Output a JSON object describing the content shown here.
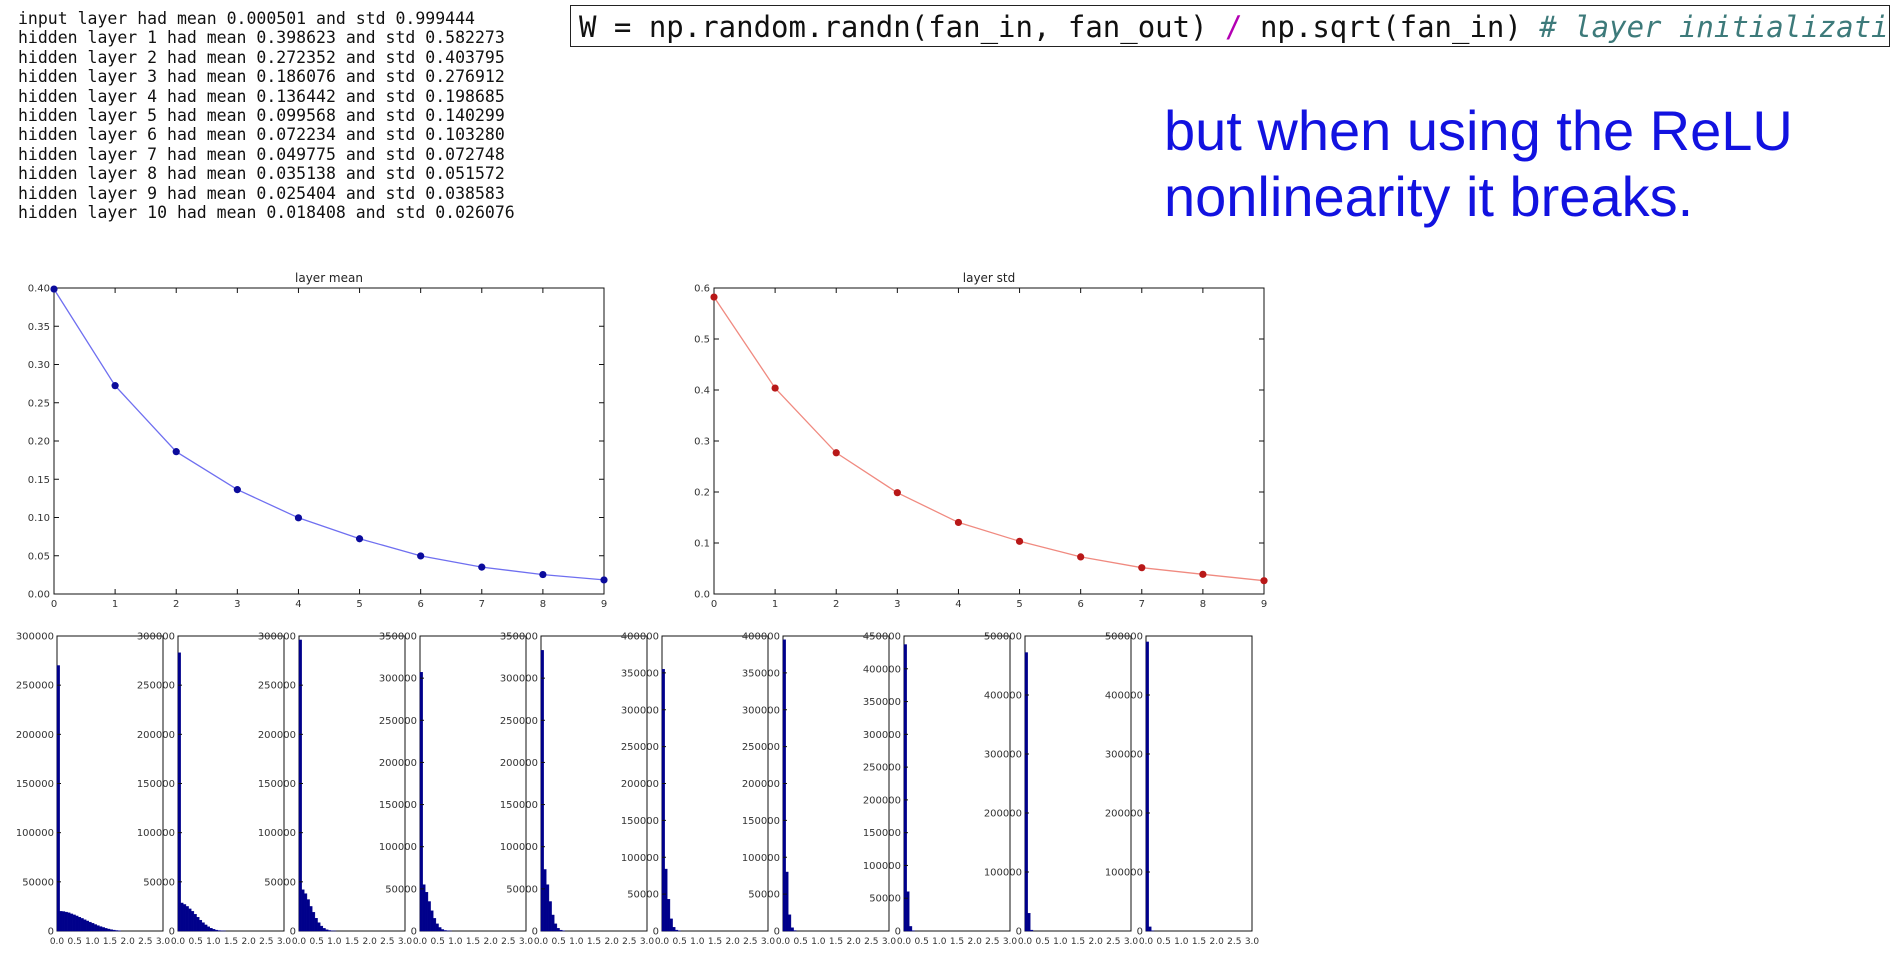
{
  "log_lines": [
    "input layer had mean 0.000501 and std 0.999444",
    "hidden layer 1 had mean 0.398623 and std 0.582273",
    "hidden layer 2 had mean 0.272352 and std 0.403795",
    "hidden layer 3 had mean 0.186076 and std 0.276912",
    "hidden layer 4 had mean 0.136442 and std 0.198685",
    "hidden layer 5 had mean 0.099568 and std 0.140299",
    "hidden layer 6 had mean 0.072234 and std 0.103280",
    "hidden layer 7 had mean 0.049775 and std 0.072748",
    "hidden layer 8 had mean 0.035138 and std 0.051572",
    "hidden layer 9 had mean 0.025404 and std 0.038583",
    "hidden layer 10 had mean 0.018408 and std 0.026076"
  ],
  "code": {
    "part1": "W = np.random.randn(fan_in, fan_out) ",
    "slash": "/",
    "part2": " np.sqrt(fan_in) ",
    "comment": "# layer initialization"
  },
  "caption": {
    "line1": "but when using the ReLU",
    "line2": "nonlinearity it breaks."
  },
  "colors": {
    "mean_line": "#6f6ff0",
    "mean_marker": "#0b0b9c",
    "std_line": "#f08a80",
    "std_marker": "#b81818",
    "hist_bar": "#00008b",
    "caption": "#1212e0"
  },
  "chart_data": [
    {
      "type": "line",
      "title": "layer mean",
      "x": [
        0,
        1,
        2,
        3,
        4,
        5,
        6,
        7,
        8,
        9
      ],
      "y": [
        0.398623,
        0.272352,
        0.186076,
        0.136442,
        0.099568,
        0.072234,
        0.049775,
        0.035138,
        0.025404,
        0.018408
      ],
      "xlim": [
        0,
        9
      ],
      "ylim": [
        0,
        0.4
      ],
      "yticks": [
        "0.00",
        "0.05",
        "0.10",
        "0.15",
        "0.20",
        "0.25",
        "0.30",
        "0.35",
        "0.40"
      ],
      "xticks": [
        "0",
        "1",
        "2",
        "3",
        "4",
        "5",
        "6",
        "7",
        "8",
        "9"
      ],
      "grid": false
    },
    {
      "type": "line",
      "title": "layer std",
      "x": [
        0,
        1,
        2,
        3,
        4,
        5,
        6,
        7,
        8,
        9
      ],
      "y": [
        0.582273,
        0.403795,
        0.276912,
        0.198685,
        0.140299,
        0.10328,
        0.072748,
        0.051572,
        0.038583,
        0.026076
      ],
      "xlim": [
        0,
        9
      ],
      "ylim": [
        0,
        0.6
      ],
      "yticks": [
        "0.0",
        "0.1",
        "0.2",
        "0.3",
        "0.4",
        "0.5",
        "0.6"
      ],
      "xticks": [
        "0",
        "1",
        "2",
        "3",
        "4",
        "5",
        "6",
        "7",
        "8",
        "9"
      ],
      "grid": false
    },
    {
      "type": "bar",
      "description_kind": "histogram",
      "xlim": [
        0,
        3
      ],
      "xtick_labels": [
        "0",
        "0.0",
        "0.5",
        "1.0",
        "1.5",
        "2.0",
        "2.5",
        "3.0"
      ],
      "panels": [
        {
          "ymax": 300000,
          "yticks": [
            "50000",
            "100000",
            "150000",
            "200000",
            "250000",
            "300000"
          ],
          "bins": [
            270000,
            20000,
            19800,
            19200,
            18500,
            17400,
            16400,
            15300,
            14000,
            12800,
            11500,
            10200,
            9000,
            7800,
            6600,
            5500,
            4500,
            3600,
            2700,
            2000,
            1400,
            900,
            500,
            300
          ]
        },
        {
          "ymax": 300000,
          "yticks": [
            "50000",
            "100000",
            "150000",
            "200000",
            "250000",
            "300000"
          ],
          "bins": [
            283000,
            28500,
            27000,
            25000,
            22500,
            20000,
            17000,
            14000,
            11000,
            8500,
            6200,
            4300,
            2800,
            1700,
            900,
            450,
            200,
            80
          ]
        },
        {
          "ymax": 300000,
          "yticks": [
            "50000",
            "100000",
            "150000",
            "200000",
            "250000",
            "300000"
          ],
          "bins": [
            296000,
            42000,
            38000,
            32000,
            25000,
            19000,
            13000,
            8500,
            5000,
            2700,
            1300,
            550,
            200,
            60
          ]
        },
        {
          "ymax": 350000,
          "yticks": [
            "50000",
            "100000",
            "150000",
            "200000",
            "250000",
            "300000",
            "350000"
          ],
          "bins": [
            307000,
            55000,
            46000,
            35000,
            24000,
            15000,
            8500,
            4200,
            1800,
            650,
            200,
            50
          ]
        },
        {
          "ymax": 350000,
          "yticks": [
            "50000",
            "100000",
            "150000",
            "200000",
            "250000",
            "300000",
            "350000"
          ],
          "bins": [
            333000,
            73000,
            55000,
            35000,
            19000,
            8500,
            3200,
            1000,
            250
          ]
        },
        {
          "ymax": 400000,
          "yticks": [
            "50000",
            "100000",
            "150000",
            "200000",
            "250000",
            "300000",
            "350000",
            "400000"
          ],
          "bins": [
            355000,
            84000,
            43000,
            16500,
            5000,
            1200,
            200
          ]
        },
        {
          "ymax": 400000,
          "yticks": [
            "50000",
            "100000",
            "150000",
            "200000",
            "250000",
            "300000",
            "350000",
            "400000"
          ],
          "bins": [
            395000,
            80000,
            22000,
            4500,
            600
          ]
        },
        {
          "ymax": 450000,
          "yticks": [
            "50000",
            "100000",
            "150000",
            "200000",
            "250000",
            "300000",
            "350000",
            "400000",
            "450000"
          ],
          "bins": [
            437000,
            60000,
            7000,
            500
          ]
        },
        {
          "ymax": 500000,
          "yticks": [
            "100000",
            "200000",
            "300000",
            "400000",
            "500000"
          ],
          "bins": [
            472000,
            30000,
            1500
          ]
        },
        {
          "ymax": 500000,
          "yticks": [
            "100000",
            "200000",
            "300000",
            "400000",
            "500000"
          ],
          "bins": [
            490000,
            7000,
            300
          ]
        }
      ]
    }
  ]
}
